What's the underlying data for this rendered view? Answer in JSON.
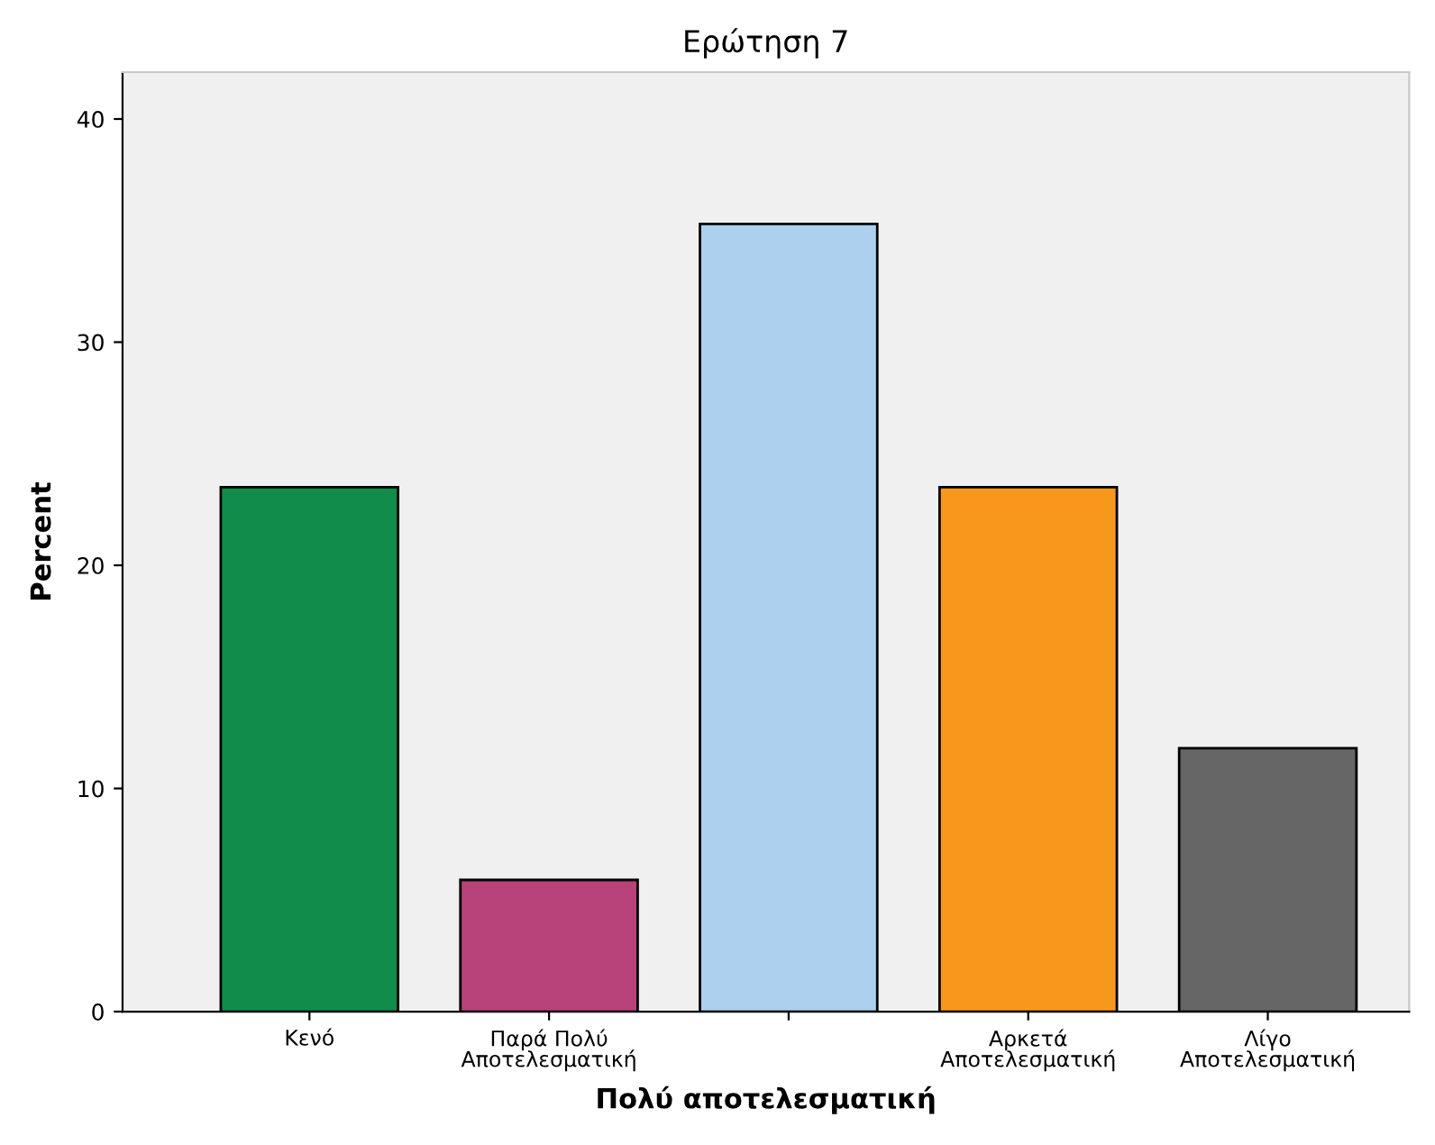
{
  "chart_data": {
    "type": "bar",
    "title": "Ερώτηση 7",
    "xlabel": "Πολύ αποτελεσματική",
    "ylabel": "Percent",
    "categories": [
      "Κενό",
      "Παρά Πολύ\nΑποτελεσματική",
      null,
      "Αρκετά\nΑποτελεσματική",
      "Λίγο\nΑποτελεσματική"
    ],
    "values": [
      23.5,
      5.9,
      35.3,
      23.5,
      11.8
    ],
    "colors": [
      "#118c4a",
      "#b8427a",
      "#acd0ee",
      "#f7981d",
      "#666666"
    ],
    "ylim": [
      0,
      42.1
    ],
    "yticks": [
      0,
      10,
      20,
      30,
      40
    ],
    "grid": false,
    "legend": false
  }
}
